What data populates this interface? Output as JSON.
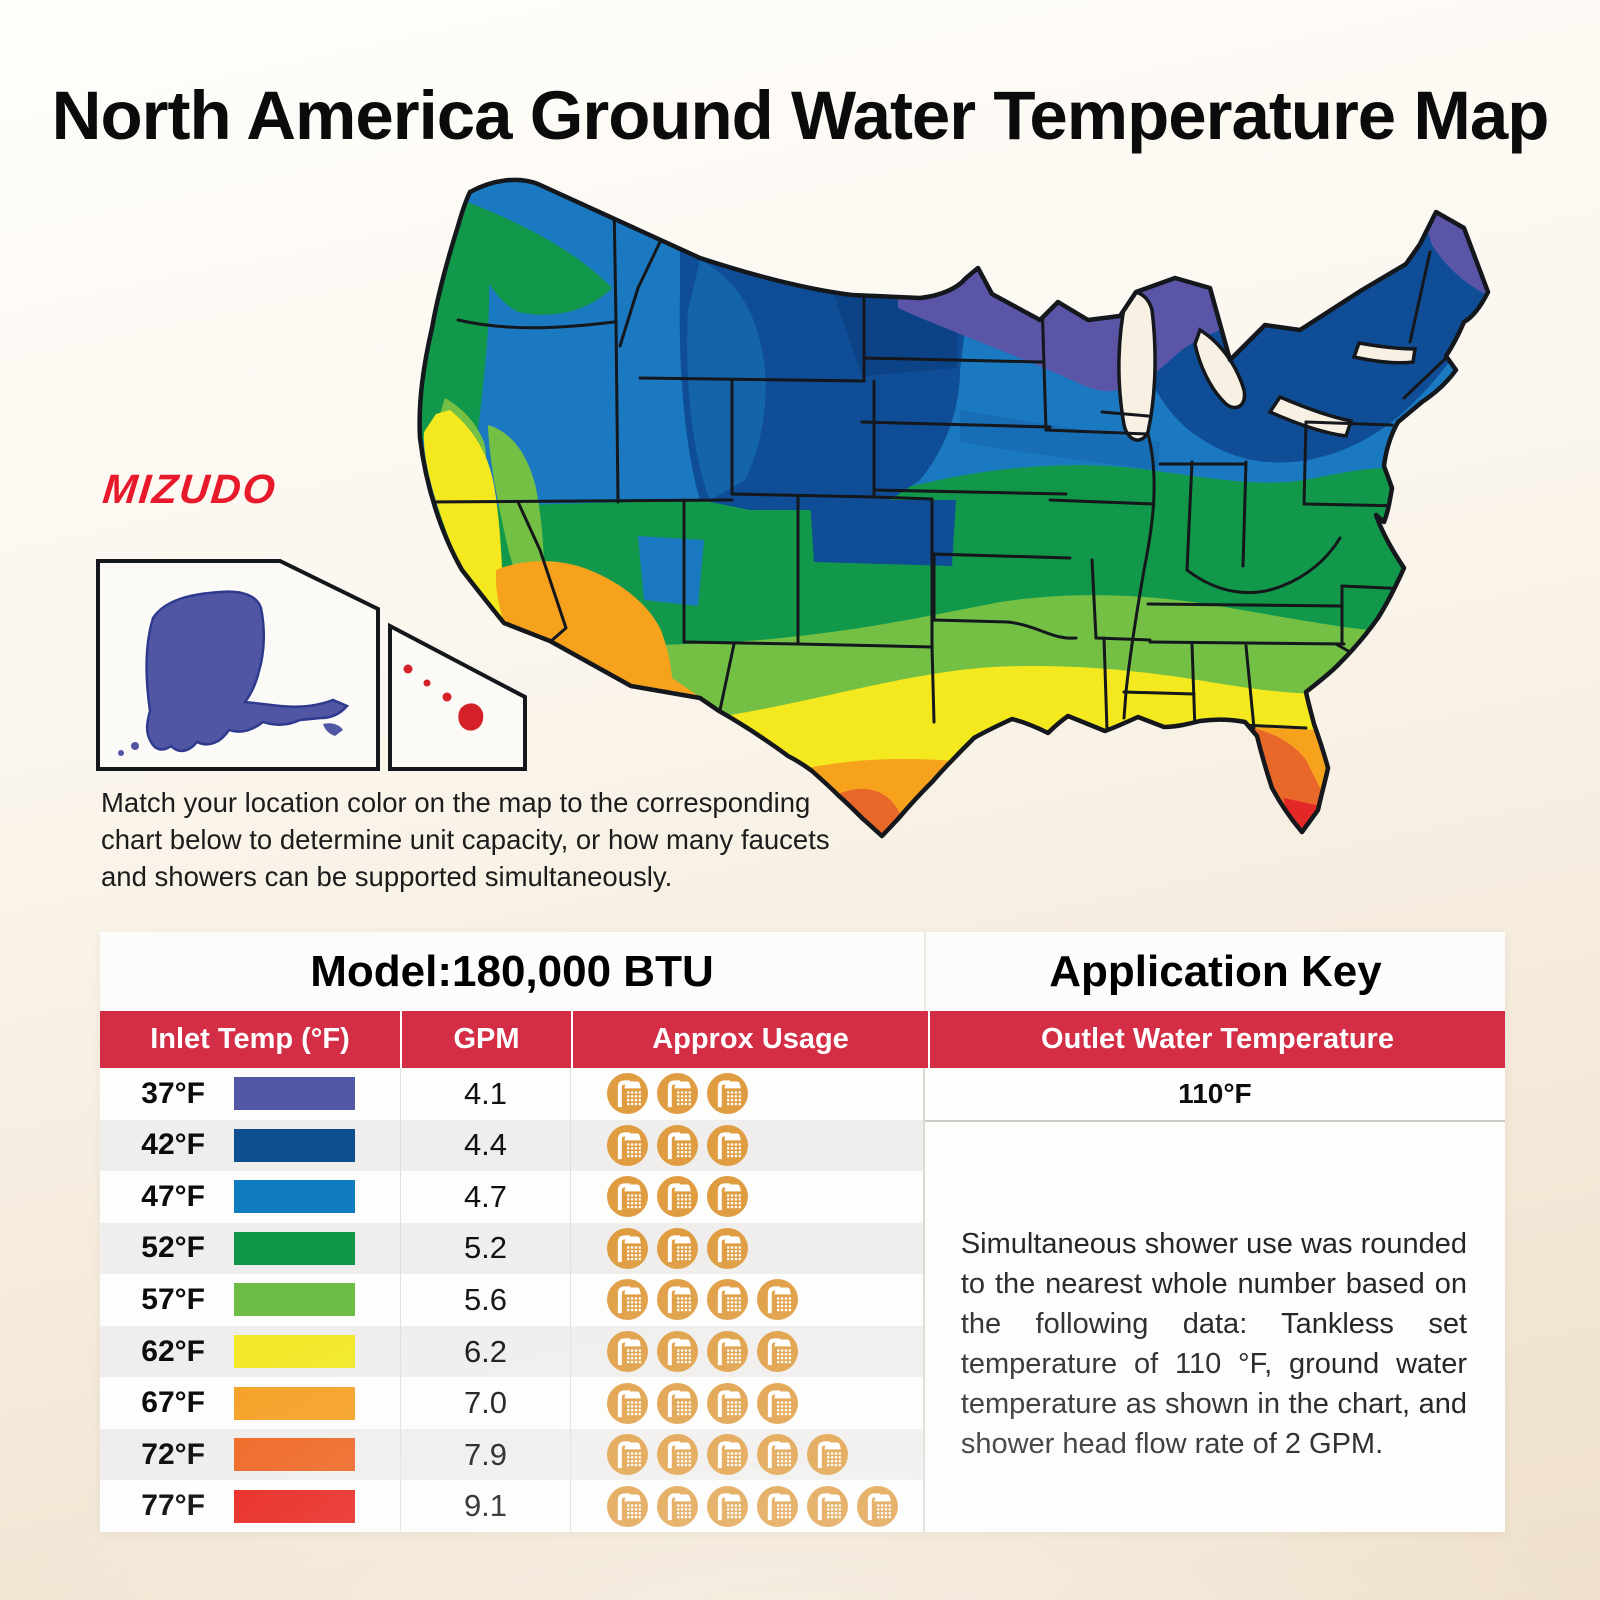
{
  "title": "North America Ground Water Temperature Map",
  "brand": "MIZUDO",
  "brand_color": "#e8192b",
  "intro": {
    "lines": [
      "Match your location color on the map to the corresponding",
      "chart below to determine unit capacity, or how many faucets",
      "and showers can be supported simultaneously."
    ]
  },
  "map": {
    "palette": {
      "purple": "#5b55a7",
      "navy": "#0f4e96",
      "navy_dark": "#0c4284",
      "blue": "#1b79c1",
      "blue_dark": "#1568ae",
      "green": "#12984a",
      "light_green": "#74c044",
      "yellow": "#f4e81f",
      "orange": "#f6a21d",
      "dark_orange": "#e8682a",
      "red": "#e32726",
      "outline": "#14171c",
      "water": "#f7f0e3",
      "inset_bg": "#fcfaf7",
      "alaska": "#5156a4",
      "alaska_stroke": "#2d3a8e",
      "hawaii": "#d42027"
    }
  },
  "table": {
    "model_header": "Model:180,000 BTU",
    "application_key_header": "Application Key",
    "header_bg": "#d42e46",
    "icon_color": "#df9c40",
    "columns": [
      "Inlet Temp (°F)",
      "GPM",
      "Approx Usage",
      "Outlet Water Temperature"
    ],
    "outlet_temp": "110°F",
    "note": "Simultaneous shower use was rounded to the nearest whole number based on the following data: Tankless set temperature of 110 °F, ground water temperature as shown in the chart, and shower head flow rate of 2 GPM.",
    "rows": [
      {
        "temp": "37°F",
        "color": "#5358a6",
        "gpm": "4.1",
        "showers": 3
      },
      {
        "temp": "42°F",
        "color": "#0f4e8f",
        "gpm": "4.4",
        "showers": 3
      },
      {
        "temp": "47°F",
        "color": "#0f7cc0",
        "gpm": "4.7",
        "showers": 3
      },
      {
        "temp": "52°F",
        "color": "#0e9547",
        "gpm": "5.2",
        "showers": 3
      },
      {
        "temp": "57°F",
        "color": "#6cbc45",
        "gpm": "5.6",
        "showers": 4
      },
      {
        "temp": "62°F",
        "color": "#f3e829",
        "gpm": "6.2",
        "showers": 4
      },
      {
        "temp": "67°F",
        "color": "#f5a127",
        "gpm": "7.0",
        "showers": 4
      },
      {
        "temp": "72°F",
        "color": "#ee6724",
        "gpm": "7.9",
        "showers": 5
      },
      {
        "temp": "77°F",
        "color": "#e8251f",
        "gpm": "9.1",
        "showers": 6
      }
    ]
  },
  "chart_data": {
    "type": "table",
    "title": "Model:180,000 BTU",
    "columns": [
      "Inlet Temp (°F)",
      "GPM",
      "Approx Usage (simultaneous showers)"
    ],
    "categories": [
      "37°F",
      "42°F",
      "47°F",
      "52°F",
      "57°F",
      "62°F",
      "67°F",
      "72°F",
      "77°F"
    ],
    "series": [
      {
        "name": "GPM",
        "values": [
          4.1,
          4.4,
          4.7,
          5.2,
          5.6,
          6.2,
          7.0,
          7.9,
          9.1
        ]
      },
      {
        "name": "Showers",
        "values": [
          3,
          3,
          3,
          3,
          4,
          4,
          4,
          5,
          6
        ]
      }
    ],
    "outlet_water_temperature": "110°F"
  }
}
